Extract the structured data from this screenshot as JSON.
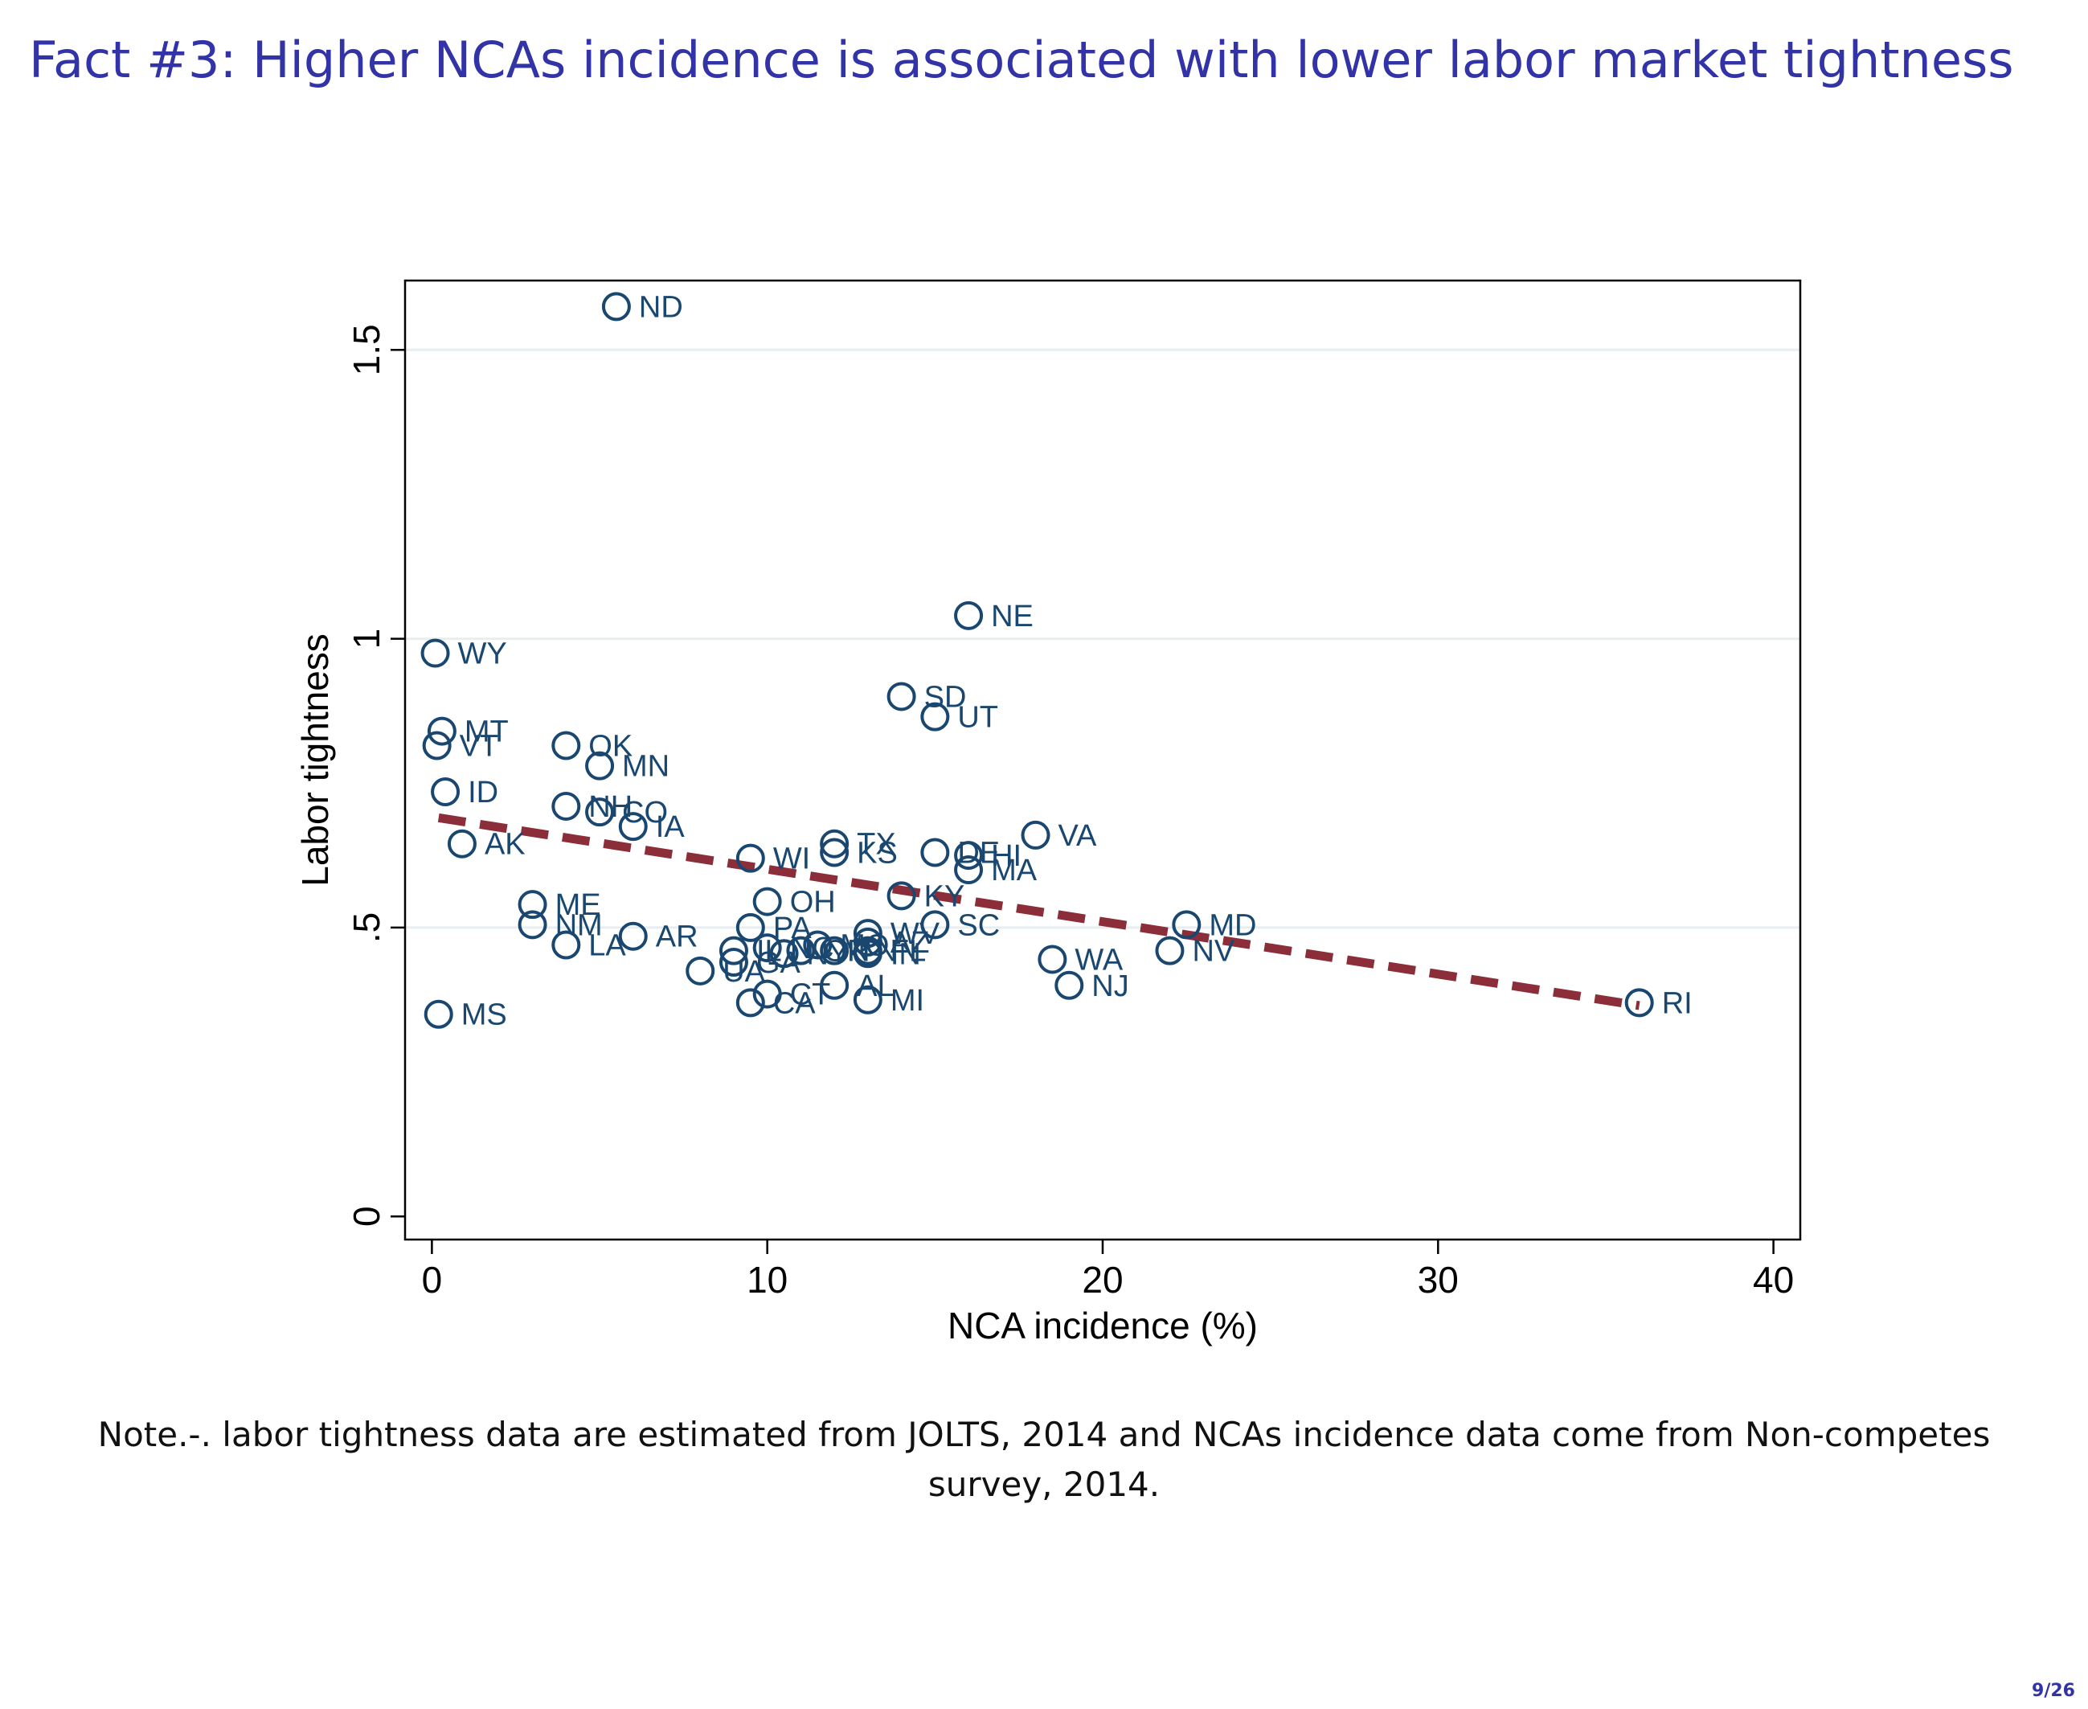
{
  "slide": {
    "title": "Fact #3: Higher NCAs incidence is associated with lower labor market tightness",
    "note_line1": "Note.-. labor tightness data are estimated from JOLTS, 2014 and NCAs incidence data come from Non-competes",
    "note_line2": "survey, 2014.",
    "page_number": "9/26"
  },
  "colors": {
    "title": "#3333a8",
    "points": "#1a476f",
    "fit_line": "#8b2e3a",
    "gridlines": "#e8eef0"
  },
  "chart_data": {
    "type": "scatter",
    "title": "",
    "xlabel": "NCA incidence (%)",
    "ylabel": "Labor tightness",
    "xlim": [
      -0.8,
      40.8
    ],
    "ylim": [
      -0.04,
      1.62
    ],
    "xticks": [
      0,
      10,
      20,
      30,
      40
    ],
    "xtick_labels": [
      "0",
      "10",
      "20",
      "30",
      "40"
    ],
    "yticks": [
      0,
      0.5,
      1,
      1.5
    ],
    "ytick_labels": [
      "0",
      ".5",
      "1",
      "1.5"
    ],
    "grid": "horizontal",
    "points": [
      {
        "label": "ND",
        "x": 5.5,
        "y": 1.575
      },
      {
        "label": "NE",
        "x": 16.0,
        "y": 1.04
      },
      {
        "label": "WY",
        "x": 0.1,
        "y": 0.975
      },
      {
        "label": "SD",
        "x": 14.0,
        "y": 0.9
      },
      {
        "label": "UT",
        "x": 15.0,
        "y": 0.865
      },
      {
        "label": "MT",
        "x": 0.3,
        "y": 0.84
      },
      {
        "label": "VT",
        "x": 0.15,
        "y": 0.815
      },
      {
        "label": "OK",
        "x": 4.0,
        "y": 0.815
      },
      {
        "label": "MN",
        "x": 5.0,
        "y": 0.78
      },
      {
        "label": "ID",
        "x": 0.4,
        "y": 0.735
      },
      {
        "label": "NH",
        "x": 4.0,
        "y": 0.71
      },
      {
        "label": "CO",
        "x": 5.0,
        "y": 0.7
      },
      {
        "label": "IA",
        "x": 6.0,
        "y": 0.675
      },
      {
        "label": "VA",
        "x": 18.0,
        "y": 0.66
      },
      {
        "label": "AK",
        "x": 0.9,
        "y": 0.645
      },
      {
        "label": "TX",
        "x": 12.0,
        "y": 0.645
      },
      {
        "label": "KS",
        "x": 12.0,
        "y": 0.63
      },
      {
        "label": "DE",
        "x": 15.0,
        "y": 0.63
      },
      {
        "label": "HI",
        "x": 16.0,
        "y": 0.625
      },
      {
        "label": "WI",
        "x": 9.5,
        "y": 0.62
      },
      {
        "label": "MA",
        "x": 16.0,
        "y": 0.6
      },
      {
        "label": "KY",
        "x": 14.0,
        "y": 0.555
      },
      {
        "label": "OH",
        "x": 10.0,
        "y": 0.545
      },
      {
        "label": "ME",
        "x": 3.0,
        "y": 0.54
      },
      {
        "label": "NM",
        "x": 3.0,
        "y": 0.505
      },
      {
        "label": "MD",
        "x": 22.5,
        "y": 0.505
      },
      {
        "label": "SC",
        "x": 15.0,
        "y": 0.505
      },
      {
        "label": "PA",
        "x": 9.5,
        "y": 0.5
      },
      {
        "label": "WV",
        "x": 13.0,
        "y": 0.49
      },
      {
        "label": "AR",
        "x": 6.0,
        "y": 0.485
      },
      {
        "label": "AZ",
        "x": 13.0,
        "y": 0.475
      },
      {
        "label": "LA",
        "x": 4.0,
        "y": 0.47
      },
      {
        "label": "MO",
        "x": 11.5,
        "y": 0.47
      },
      {
        "label": "NC",
        "x": 10.0,
        "y": 0.465
      },
      {
        "label": "IL",
        "x": 9.0,
        "y": 0.46
      },
      {
        "label": "OR",
        "x": 11.0,
        "y": 0.46
      },
      {
        "label": "TN",
        "x": 12.0,
        "y": 0.46
      },
      {
        "label": "FL",
        "x": 13.0,
        "y": 0.46
      },
      {
        "label": "NV",
        "x": 22.0,
        "y": 0.46
      },
      {
        "label": "IN",
        "x": 13.0,
        "y": 0.455
      },
      {
        "label": "NY",
        "x": 10.5,
        "y": 0.455
      },
      {
        "label": "GA",
        "x": 9.0,
        "y": 0.44
      },
      {
        "label": "WA",
        "x": 18.5,
        "y": 0.445
      },
      {
        "label": "UA",
        "x": 8.0,
        "y": 0.425
      },
      {
        "label": "NJ",
        "x": 19.0,
        "y": 0.4
      },
      {
        "label": "AL",
        "x": 12.0,
        "y": 0.4
      },
      {
        "label": "CT",
        "x": 10.0,
        "y": 0.385
      },
      {
        "label": "MI",
        "x": 13.0,
        "y": 0.375
      },
      {
        "label": "CA",
        "x": 9.5,
        "y": 0.37
      },
      {
        "label": "RI",
        "x": 36.0,
        "y": 0.37
      },
      {
        "label": "MS",
        "x": 0.2,
        "y": 0.35
      }
    ],
    "fit_line": {
      "x": [
        0.2,
        36.0
      ],
      "y": [
        0.69,
        0.365
      ],
      "style": "dashed"
    }
  }
}
